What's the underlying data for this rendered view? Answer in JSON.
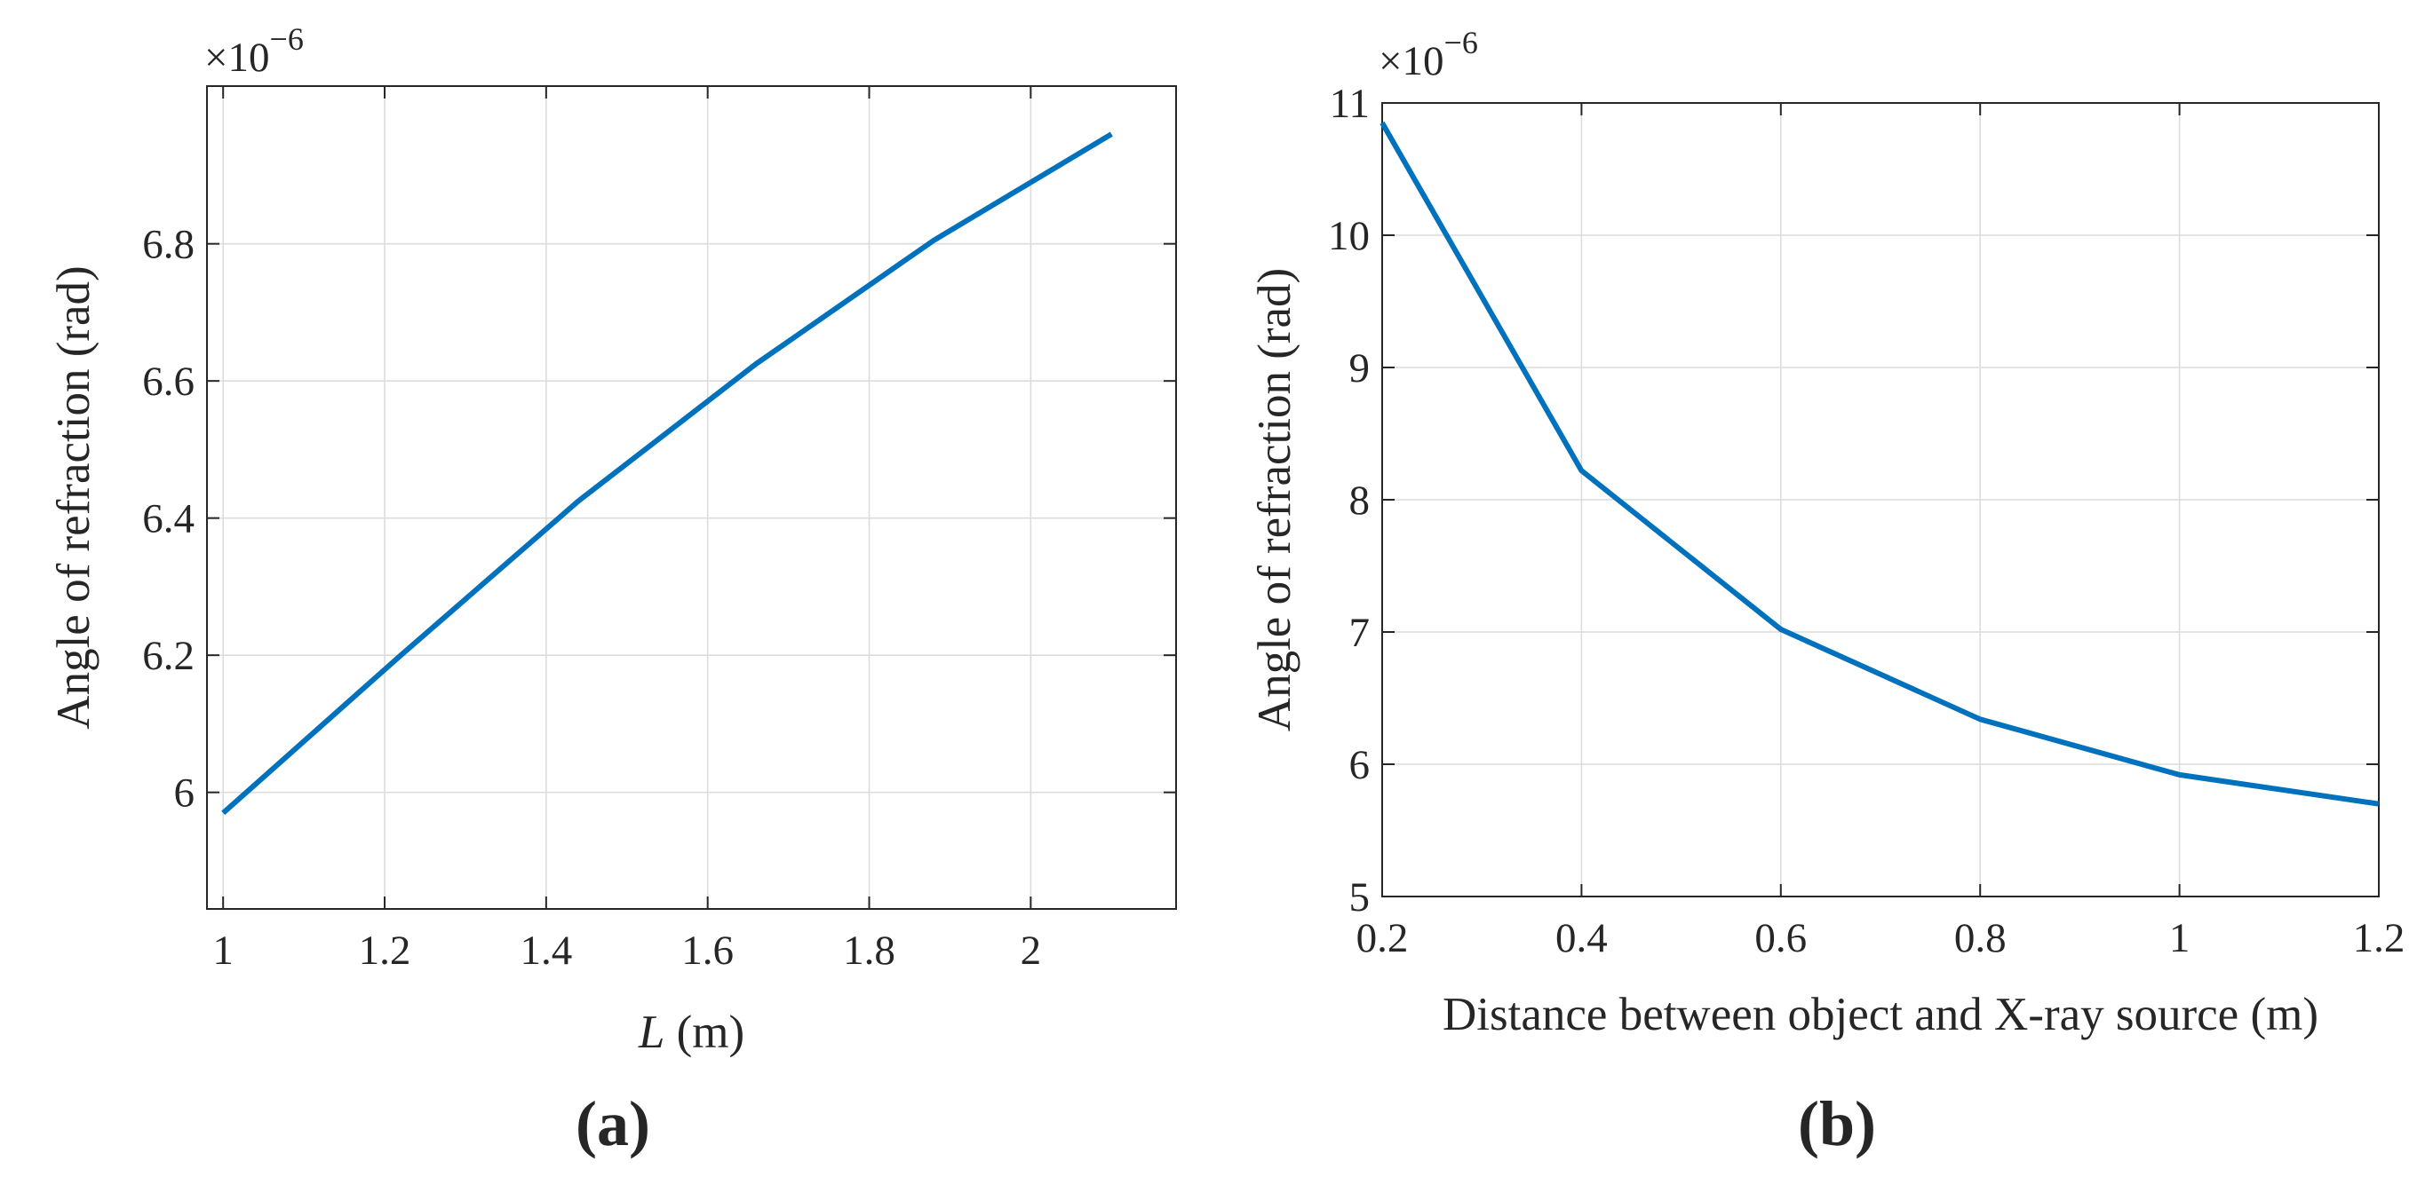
{
  "colors": {
    "series": "#0072BD",
    "axis": "#262626",
    "grid": "#dcdcdc"
  },
  "chart_data": [
    {
      "type": "line",
      "panel_label": "(a)",
      "title": "",
      "xlabel_var": "L",
      "xlabel_unit": " (m)",
      "ylabel": "Angle of refraction (rad)",
      "y_exponent_label": "×10",
      "y_exponent_power": "−6",
      "xlim": [
        0.98,
        2.18
      ],
      "ylim": [
        5.83,
        7.03
      ],
      "xticks": [
        1,
        1.2,
        1.4,
        1.6,
        1.8,
        2
      ],
      "xtick_labels": [
        "1",
        "1.2",
        "1.4",
        "1.6",
        "1.8",
        "2"
      ],
      "yticks": [
        6,
        6.2,
        6.4,
        6.6,
        6.8
      ],
      "ytick_labels": [
        "6",
        "6.2",
        "6.4",
        "6.6",
        "6.8"
      ],
      "grid": true,
      "series": [
        {
          "name": "Angle of refraction",
          "x": [
            1.0,
            1.22,
            1.44,
            1.66,
            1.88,
            2.1
          ],
          "y": [
            5.97,
            6.2,
            6.425,
            6.625,
            6.805,
            6.96
          ]
        }
      ]
    },
    {
      "type": "line",
      "panel_label": "(b)",
      "title": "",
      "xlabel": "Distance between object and X-ray source (m)",
      "ylabel": "Angle of refraction (rad)",
      "y_exponent_label": "×10",
      "y_exponent_power": "−6",
      "xlim": [
        0.2,
        1.2
      ],
      "ylim": [
        5,
        11
      ],
      "xticks": [
        0.2,
        0.4,
        0.6,
        0.8,
        1,
        1.2
      ],
      "xtick_labels": [
        "0.2",
        "0.4",
        "0.6",
        "0.8",
        "1",
        "1.2"
      ],
      "yticks": [
        5,
        6,
        7,
        8,
        9,
        10,
        11
      ],
      "ytick_labels": [
        "5",
        "6",
        "7",
        "8",
        "9",
        "10",
        "11"
      ],
      "grid": true,
      "series": [
        {
          "name": "Angle of refraction",
          "x": [
            0.2,
            0.4,
            0.6,
            0.8,
            1.0,
            1.2
          ],
          "y": [
            10.85,
            8.22,
            7.02,
            6.34,
            5.92,
            5.7
          ]
        }
      ]
    }
  ]
}
